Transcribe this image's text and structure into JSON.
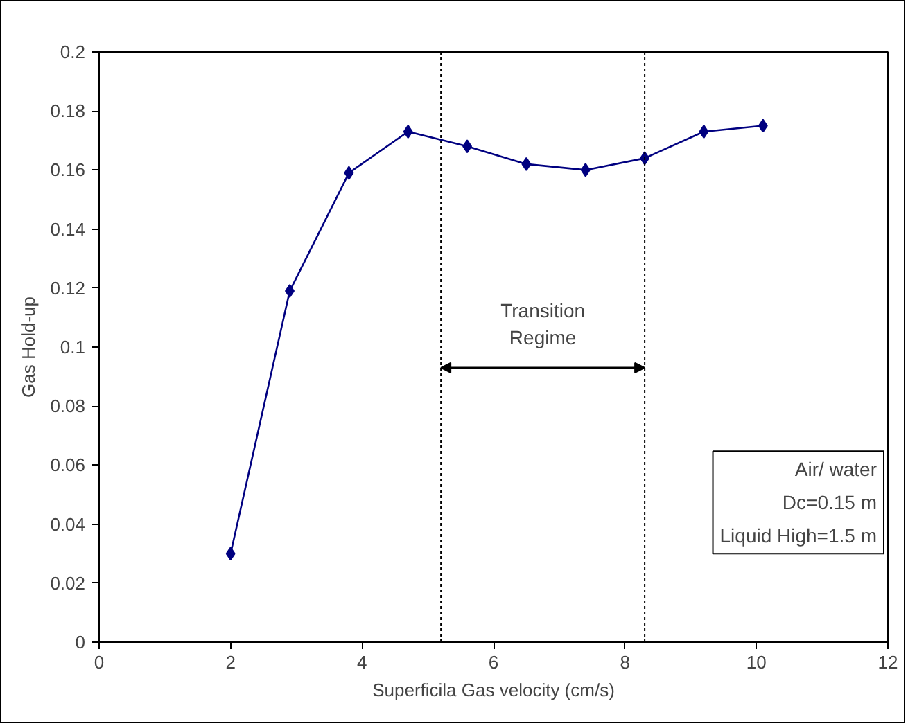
{
  "chart_data": {
    "type": "line",
    "xlabel": "Superficila Gas velocity (cm/s)",
    "ylabel": "Gas Hold-up",
    "x": [
      2,
      2.9,
      3.8,
      4.7,
      5.6,
      6.5,
      7.4,
      8.3,
      9.2,
      10.1
    ],
    "series": [
      {
        "color": "#000080",
        "values": [
          0.03,
          0.119,
          0.159,
          0.173,
          0.168,
          0.162,
          0.16,
          0.164,
          0.173,
          0.175
        ]
      }
    ],
    "xlim": [
      0,
      12
    ],
    "xticks": [
      0,
      2,
      4,
      6,
      8,
      10,
      12
    ],
    "ylim": [
      0,
      0.2
    ],
    "yticks": [
      0,
      0.02,
      0.04,
      0.06,
      0.08,
      0.1,
      0.12,
      0.14,
      0.16,
      0.18,
      0.2
    ],
    "ref_lines": [
      {
        "axis": "x",
        "value": 5.2,
        "color": "#000000",
        "line_style": "dotted"
      },
      {
        "axis": "x",
        "value": 8.3,
        "color": "#000000",
        "line_style": "dotted"
      }
    ],
    "annotations": [
      "Transition Regime",
      "Air/ water",
      "Dc=0.15 m",
      "Liquid High=1.5 m"
    ],
    "marker": "diamond",
    "grid": false
  }
}
